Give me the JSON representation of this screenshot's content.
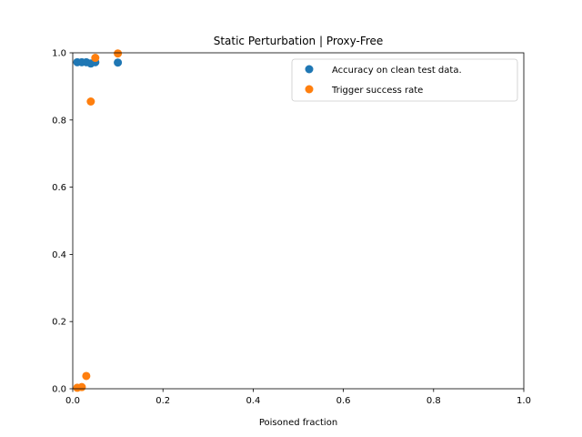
{
  "chart_data": {
    "type": "scatter",
    "title": "Static Perturbation | Proxy-Free",
    "xlabel": "Poisoned fraction",
    "ylabel": "",
    "xlim": [
      0,
      1
    ],
    "ylim": [
      0,
      1
    ],
    "xticks": [
      "0.0",
      "0.2",
      "0.4",
      "0.6",
      "0.8",
      "1.0"
    ],
    "yticks": [
      "0.0",
      "0.2",
      "0.4",
      "0.6",
      "0.8",
      "1.0"
    ],
    "grid": false,
    "legend_position": "top-right",
    "series": [
      {
        "name": "Accuracy on clean test data.",
        "color": "#1f77b4",
        "points": [
          {
            "x": 0.01,
            "y": 0.972
          },
          {
            "x": 0.02,
            "y": 0.972
          },
          {
            "x": 0.03,
            "y": 0.972
          },
          {
            "x": 0.04,
            "y": 0.968
          },
          {
            "x": 0.05,
            "y": 0.972
          },
          {
            "x": 0.1,
            "y": 0.971
          }
        ]
      },
      {
        "name": "Trigger success rate",
        "color": "#ff7f0e",
        "points": [
          {
            "x": 0.01,
            "y": 0.003
          },
          {
            "x": 0.02,
            "y": 0.005
          },
          {
            "x": 0.03,
            "y": 0.038
          },
          {
            "x": 0.04,
            "y": 0.855
          },
          {
            "x": 0.05,
            "y": 0.985
          },
          {
            "x": 0.1,
            "y": 0.998
          }
        ]
      }
    ]
  }
}
